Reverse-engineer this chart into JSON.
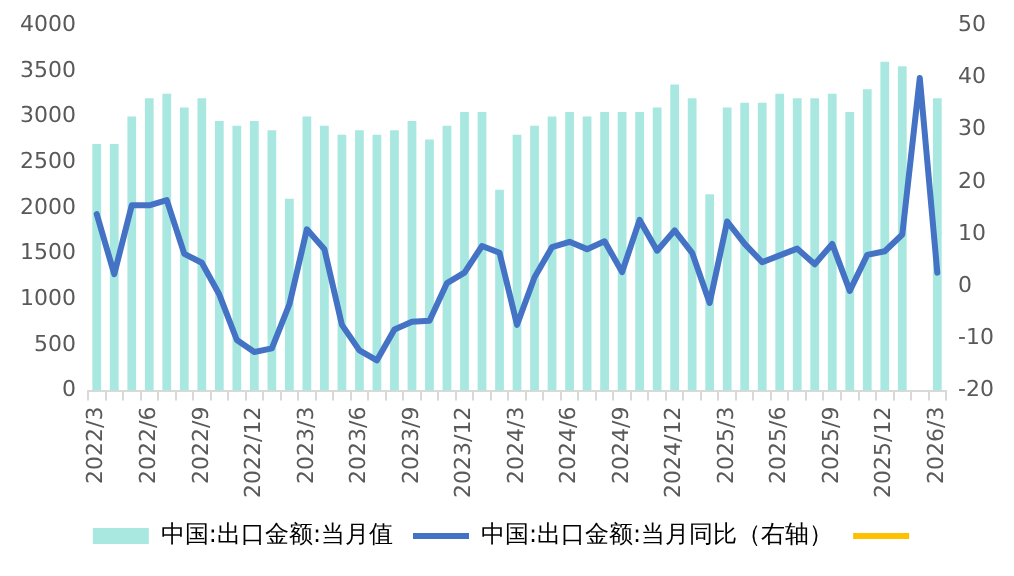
{
  "chart_data": {
    "type": "bar",
    "categories": [
      "2022/3",
      null,
      null,
      "2022/6",
      null,
      null,
      "2022/9",
      null,
      null,
      "2022/12",
      null,
      null,
      "2023/3",
      null,
      null,
      "2023/6",
      null,
      null,
      "2023/9",
      null,
      null,
      "2023/12",
      null,
      null,
      "2024/3",
      null,
      null,
      "2024/6",
      null,
      null,
      "2024/9",
      null,
      null,
      "2024/12",
      null,
      null,
      "2025/3",
      null,
      null,
      "2025/6",
      null,
      null,
      "2025/9",
      null,
      null,
      "2025/12",
      null,
      null,
      "2026/3"
    ],
    "series": [
      {
        "name": "中国:出口金额:当月值",
        "color": "#a8e8e0",
        "values": [
          2700,
          2700,
          3000,
          3200,
          3250,
          3100,
          3200,
          2950,
          2900,
          2950,
          2850,
          2100,
          3000,
          2900,
          2800,
          2850,
          2800,
          2850,
          2950,
          2750,
          2900,
          3050,
          3050,
          2200,
          2800,
          2900,
          3000,
          3050,
          3000,
          3050,
          3050,
          3050,
          3100,
          3350,
          3200,
          2150,
          3100,
          3150,
          3150,
          3250,
          3200,
          3200,
          3250,
          3050,
          3300,
          3600,
          3550,
          null,
          3200
        ]
      },
      {
        "name": "中国:出口金额:当月同比（右轴）",
        "type": "line",
        "axis": "y2",
        "color": "#4472c4",
        "values": [
          13.8,
          2.3,
          15.5,
          15.5,
          16.5,
          6.2,
          4.5,
          -1.6,
          -10.3,
          -12.6,
          -11.9,
          -3.5,
          10.9,
          7.1,
          -7.4,
          -12.3,
          -14.2,
          -8.3,
          -6.8,
          -6.6,
          0.6,
          2.6,
          7.7,
          6.4,
          -7.4,
          1.7,
          7.5,
          8.5,
          7.1,
          8.6,
          2.7,
          12.7,
          6.8,
          10.7,
          6.4,
          -3.2,
          12.4,
          8.1,
          4.6,
          5.9,
          7.2,
          4.2,
          8.1,
          -0.9,
          6.0,
          6.7,
          9.9,
          39.9,
          2.6
        ]
      },
      {
        "type": "line",
        "color": "#ffc000",
        "values": [
          null,
          null,
          null,
          null,
          null,
          null,
          null,
          null,
          null,
          null,
          null,
          null,
          null,
          null,
          null,
          null,
          null,
          null,
          null,
          null,
          null,
          null,
          null,
          null,
          null,
          null,
          null,
          null,
          null,
          null,
          null,
          null,
          null,
          null,
          null,
          null,
          null,
          null,
          null,
          null,
          null,
          null,
          null,
          null,
          null,
          null,
          null,
          null,
          null
        ]
      }
    ],
    "ylim": [
      0,
      4000
    ],
    "yticks": [
      0,
      500,
      1000,
      1500,
      2000,
      2500,
      3000,
      3500,
      4000
    ],
    "y2lim": [
      -20,
      50
    ],
    "y2ticks": [
      -20,
      -10,
      0,
      10,
      20,
      30,
      40,
      50
    ],
    "grid": false,
    "legend": "bottom",
    "marker": "none"
  }
}
